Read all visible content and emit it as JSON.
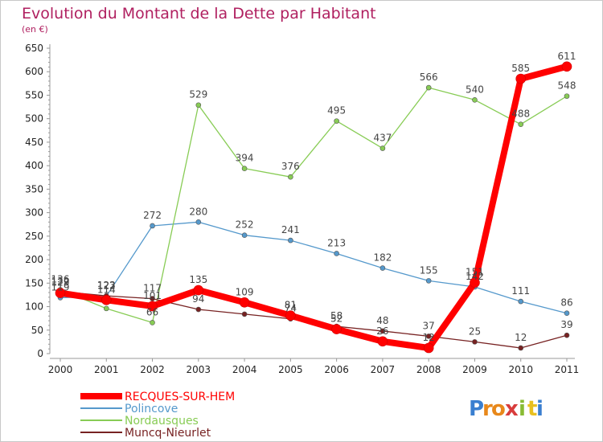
{
  "chart_data": {
    "type": "line",
    "title": "Evolution du Montant de la Dette par Habitant",
    "subtitle": "(en €)",
    "x": [
      "2000",
      "2001",
      "2002",
      "2003",
      "2004",
      "2005",
      "2006",
      "2007",
      "2008",
      "2009",
      "2010",
      "2011"
    ],
    "ylim": [
      0,
      650
    ],
    "yticks": [
      "0",
      "50",
      "100",
      "150",
      "200",
      "250",
      "300",
      "350",
      "400",
      "450",
      "500",
      "550",
      "600",
      "650"
    ],
    "grid": false,
    "legend_position": "bottom-left",
    "series": [
      {
        "name": "RECQUES-SUR-HEM",
        "color": "#ff0000",
        "values": [
          129,
          114,
          101,
          135,
          109,
          81,
          52,
          26,
          12,
          151,
          585,
          611
        ],
        "labels": [
          "129",
          "114",
          "101",
          "135",
          "109",
          "81",
          "52",
          "26",
          "12",
          "151",
          "585",
          "611"
        ]
      },
      {
        "name": "Polincove",
        "color": "#5599cc",
        "values": [
          119,
          122,
          272,
          280,
          252,
          241,
          213,
          182,
          155,
          142,
          111,
          86
        ],
        "labels": [
          "119",
          "122",
          "272",
          "280",
          "252",
          "241",
          "213",
          "182",
          "155",
          "142",
          "111",
          "86"
        ]
      },
      {
        "name": "Nordausques",
        "color": "#88cc55",
        "values": [
          136,
          96,
          66,
          529,
          394,
          376,
          495,
          437,
          566,
          540,
          488,
          548
        ],
        "labels": [
          "136",
          "",
          "66",
          "529",
          "394",
          "376",
          "495",
          "437",
          "566",
          "540",
          "488",
          "548"
        ]
      },
      {
        "name": "Muncq-Nieurlet",
        "color": "#772222",
        "values": [
          132,
          123,
          117,
          94,
          84,
          74,
          58,
          48,
          37,
          25,
          12,
          39
        ],
        "labels": [
          "132",
          "123",
          "117",
          "94",
          "",
          "74",
          "58",
          "48",
          "37",
          "25",
          "12",
          "39"
        ]
      }
    ]
  },
  "logo": {
    "letters": [
      "P",
      "r",
      "o",
      "x",
      "i",
      "t",
      "i"
    ],
    "colors": [
      "#3a7fd0",
      "#e8881a",
      "#e8881a",
      "#d83c3c",
      "#88bb33",
      "#e8c020",
      "#3a7fd0"
    ]
  }
}
